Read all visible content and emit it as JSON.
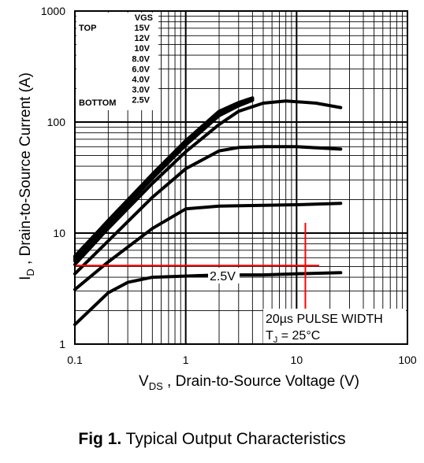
{
  "chart_data": {
    "type": "line",
    "x_scale": "log",
    "y_scale": "log",
    "xlim": [
      0.1,
      100
    ],
    "ylim": [
      1,
      1000
    ],
    "x_ticks": [
      "0.1",
      "1",
      "10",
      "100"
    ],
    "y_ticks": [
      "1",
      "10",
      "100",
      "1000"
    ],
    "xlabel": {
      "main": "V",
      "sub": "DS",
      "rest": " , Drain-to-Source Voltage (V)"
    },
    "ylabel": {
      "main": "I",
      "sub": "D",
      "rest": " , Drain-to-Source Current (A)"
    },
    "grid": true,
    "legend": {
      "header": "VGS",
      "top_label": "TOP",
      "bottom_label": "BOTTOM",
      "entries": [
        "15V",
        "12V",
        "10V",
        "8.0V",
        "6.0V",
        "4.0V",
        "3.0V",
        "2.5V"
      ]
    },
    "series": [
      {
        "name": "15V",
        "x": [
          0.1,
          0.2,
          0.5,
          1,
          2,
          3,
          4
        ],
        "y": [
          6.2,
          13,
          34,
          68,
          125,
          150,
          165
        ]
      },
      {
        "name": "12V",
        "x": [
          0.1,
          0.2,
          0.5,
          1,
          2,
          3,
          4
        ],
        "y": [
          6.0,
          12.6,
          33,
          66,
          122,
          148,
          163
        ]
      },
      {
        "name": "10V",
        "x": [
          0.1,
          0.2,
          0.5,
          1,
          2,
          3,
          4
        ],
        "y": [
          5.8,
          12.2,
          32,
          64,
          118,
          145,
          160
        ]
      },
      {
        "name": "8.0V",
        "x": [
          0.1,
          0.2,
          0.5,
          1,
          2,
          3,
          4
        ],
        "y": [
          5.6,
          11.8,
          31,
          62,
          114,
          140,
          157
        ]
      },
      {
        "name": "6.0V",
        "x": [
          0.1,
          0.2,
          0.5,
          1,
          2,
          3,
          5,
          8,
          15,
          25
        ],
        "y": [
          5.2,
          11,
          28,
          54,
          95,
          125,
          148,
          155,
          148,
          135
        ]
      },
      {
        "name": "4.0V",
        "x": [
          0.1,
          0.2,
          0.5,
          1,
          2,
          3,
          5,
          10,
          25
        ],
        "y": [
          4.3,
          8.5,
          21,
          38,
          55,
          59,
          60,
          60,
          57
        ]
      },
      {
        "name": "3.0V",
        "x": [
          0.1,
          0.2,
          0.5,
          1,
          2,
          5,
          10,
          25
        ],
        "y": [
          3.1,
          5.5,
          11,
          16.5,
          17.5,
          17.8,
          18,
          18.5
        ]
      },
      {
        "name": "2.5V",
        "x": [
          0.1,
          0.2,
          0.3,
          0.5,
          1,
          2,
          5,
          10,
          25
        ],
        "y": [
          1.5,
          2.9,
          3.6,
          4.0,
          4.1,
          4.2,
          4.2,
          4.3,
          4.4
        ]
      }
    ],
    "annotations": {
      "curve_label": "2.5V",
      "pulse_text": "20µs PULSE WIDTH",
      "tj_main": "T",
      "tj_sub": "J",
      "tj_rest": " = 25°C"
    },
    "markers": {
      "color": "#ff0000",
      "hline_y": 5.1,
      "vline_x": 12
    }
  },
  "caption": {
    "label": "Fig 1.",
    "text": "  Typical Output Characteristics"
  }
}
